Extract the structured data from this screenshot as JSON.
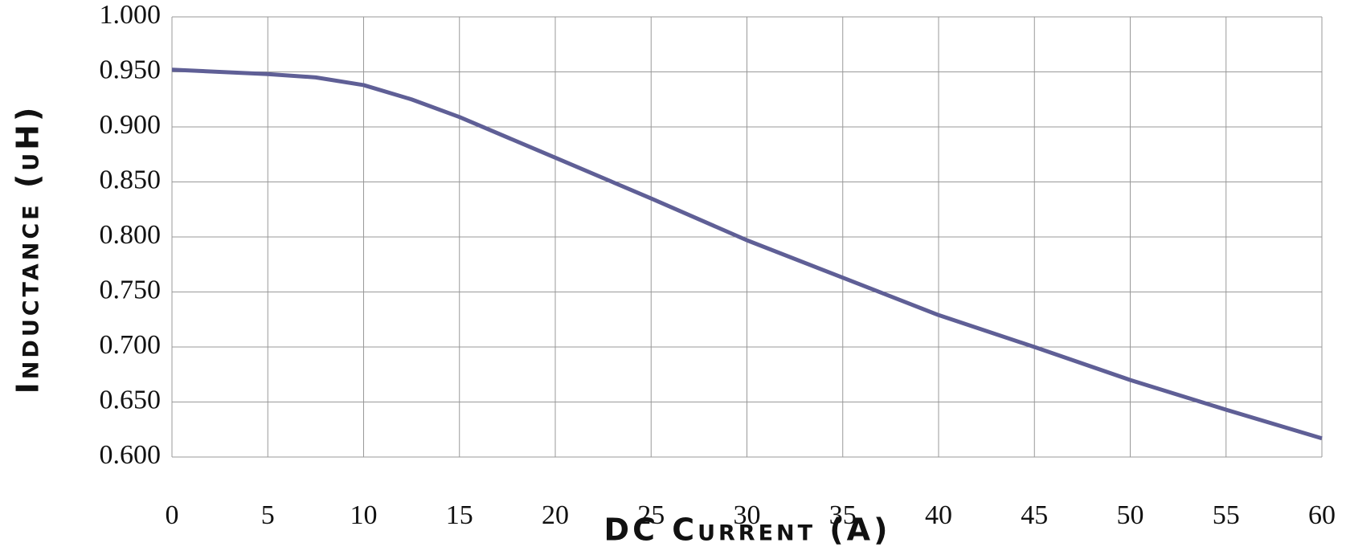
{
  "chart_data": {
    "type": "line",
    "x_label": "DC Current (A)",
    "y_label": "Inductance (uH)",
    "x": [
      0,
      5,
      7.5,
      10,
      12.5,
      15,
      20,
      25,
      30,
      35,
      40,
      45,
      50,
      55,
      60
    ],
    "series": [
      {
        "name": "Inductance",
        "color": "#5f5f96",
        "values": [
          0.952,
          0.948,
          0.945,
          0.938,
          0.925,
          0.909,
          0.872,
          0.835,
          0.797,
          0.763,
          0.729,
          0.7,
          0.67,
          0.643,
          0.617
        ]
      }
    ],
    "xlim": [
      0,
      60
    ],
    "xticks": [
      0,
      5,
      10,
      15,
      20,
      25,
      30,
      35,
      40,
      45,
      50,
      55,
      60
    ],
    "ylim": [
      0.6,
      1.0
    ],
    "yticks": [
      {
        "value": 0.6,
        "label": "0.600"
      },
      {
        "value": 0.65,
        "label": "0.650"
      },
      {
        "value": 0.7,
        "label": "0.700"
      },
      {
        "value": 0.75,
        "label": "0.750"
      },
      {
        "value": 0.8,
        "label": "0.800"
      },
      {
        "value": 0.85,
        "label": "0.850"
      },
      {
        "value": 0.9,
        "label": "0.900"
      },
      {
        "value": 0.95,
        "label": "0.950"
      },
      {
        "value": 1.0,
        "label": "1.000"
      }
    ],
    "grid": true
  }
}
